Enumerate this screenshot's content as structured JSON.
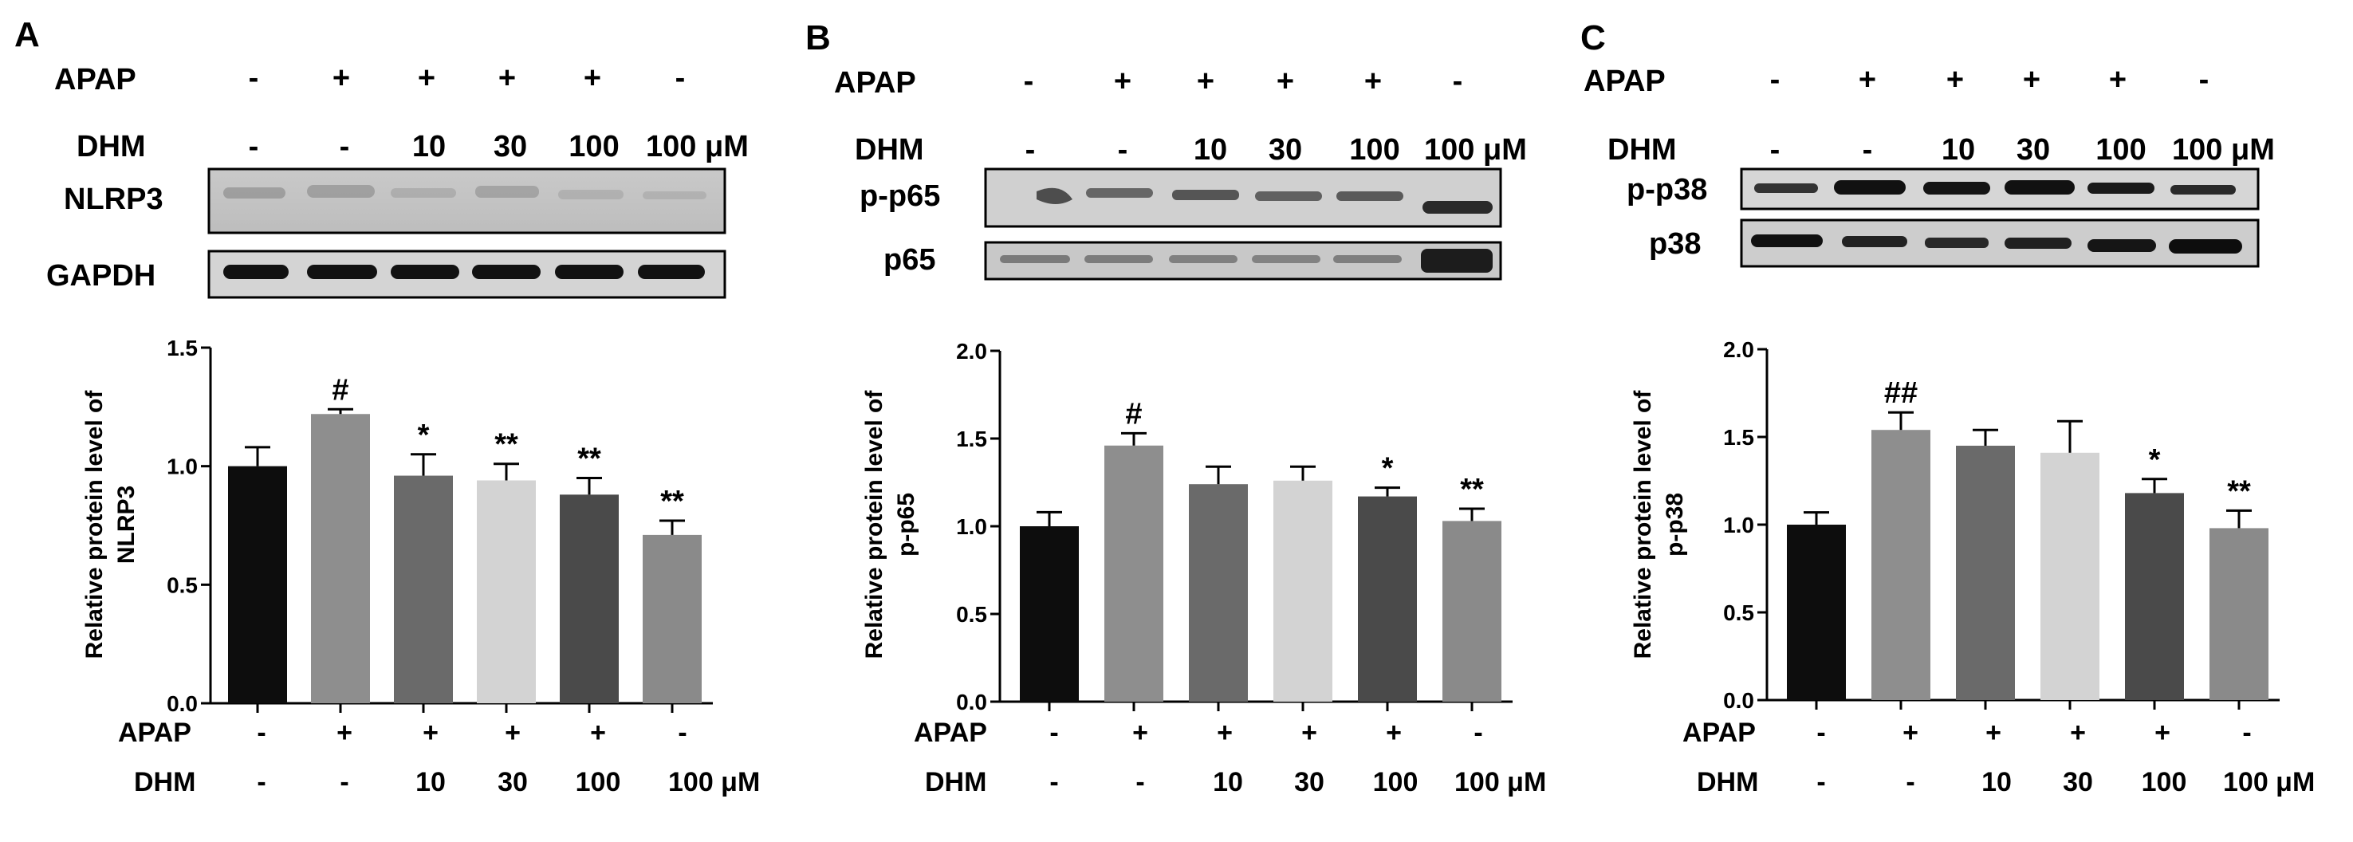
{
  "panels": [
    {
      "letter": "A",
      "blot_header": {
        "row1_label": "APAP",
        "row2_label": "DHM",
        "apap": [
          "-",
          "+",
          "+",
          "+",
          "+",
          "-"
        ],
        "dhm": [
          "-",
          "-",
          "10",
          "30",
          "100",
          "100 μM"
        ]
      },
      "blots": [
        "NLRP3",
        "GAPDH"
      ],
      "axis_header": {
        "row1_label": "APAP",
        "row2_label": "DHM",
        "apap": [
          "-",
          "+",
          "+",
          "+",
          "+",
          "-"
        ],
        "dhm": [
          "-",
          "-",
          "10",
          "30",
          "100",
          "100 μM"
        ]
      }
    },
    {
      "letter": "B",
      "blot_header": {
        "row1_label": "APAP",
        "row2_label": "DHM",
        "apap": [
          "-",
          "+",
          "+",
          "+",
          "+",
          "-"
        ],
        "dhm": [
          "-",
          "-",
          "10",
          "30",
          "100",
          "100 μM"
        ]
      },
      "blots": [
        "p-p65",
        "p65"
      ],
      "axis_header": {
        "row1_label": "APAP",
        "row2_label": "DHM",
        "apap": [
          "-",
          "+",
          "+",
          "+",
          "+",
          "-"
        ],
        "dhm": [
          "-",
          "-",
          "10",
          "30",
          "100",
          "100 μM"
        ]
      }
    },
    {
      "letter": "C",
      "blot_header": {
        "row1_label": "APAP",
        "row2_label": "DHM",
        "apap": [
          "-",
          "+",
          "+",
          "+",
          "+",
          "-"
        ],
        "dhm": [
          "-",
          "-",
          "10",
          "30",
          "100",
          "100 μM"
        ]
      },
      "blots": [
        "p-p38",
        "p38"
      ],
      "axis_header": {
        "row1_label": "APAP",
        "row2_label": "DHM",
        "apap": [
          "-",
          "+",
          "+",
          "+",
          "+",
          "-"
        ],
        "dhm": [
          "-",
          "-",
          "10",
          "30",
          "100",
          "100 μM"
        ]
      }
    }
  ],
  "bar_colors": [
    "#0d0d0d",
    "#8e8e8e",
    "#6a6a6a",
    "#d3d3d3",
    "#4a4a4a",
    "#8a8a8a"
  ],
  "chart_data": [
    {
      "type": "bar",
      "panel": "A",
      "ylabel_lines": [
        "Relative protein level of",
        "NLRP3"
      ],
      "ylim": [
        0,
        1.5
      ],
      "yticks": [
        "0.0",
        "0.5",
        "1.0",
        "1.5"
      ],
      "categories": [
        "1",
        "2",
        "3",
        "4",
        "5",
        "6"
      ],
      "values": [
        1.0,
        1.22,
        0.96,
        0.94,
        0.88,
        0.71
      ],
      "errors": [
        0.08,
        0.02,
        0.09,
        0.07,
        0.07,
        0.06
      ],
      "annotations": [
        "",
        "#",
        "*",
        "**",
        "**",
        "**"
      ]
    },
    {
      "type": "bar",
      "panel": "B",
      "ylabel_lines": [
        "Relative protein level of",
        "p-p65"
      ],
      "ylim": [
        0,
        2.0
      ],
      "yticks": [
        "0.0",
        "0.5",
        "1.0",
        "1.5",
        "2.0"
      ],
      "categories": [
        "1",
        "2",
        "3",
        "4",
        "5",
        "6"
      ],
      "values": [
        1.0,
        1.46,
        1.24,
        1.26,
        1.17,
        1.03
      ],
      "errors": [
        0.08,
        0.07,
        0.1,
        0.08,
        0.05,
        0.07
      ],
      "annotations": [
        "",
        "#",
        "",
        "",
        "*",
        "**"
      ]
    },
    {
      "type": "bar",
      "panel": "C",
      "ylabel_lines": [
        "Relative protein level of",
        "p-p38"
      ],
      "ylim": [
        0,
        2.0
      ],
      "yticks": [
        "0.0",
        "0.5",
        "1.0",
        "1.5",
        "2.0"
      ],
      "categories": [
        "1",
        "2",
        "3",
        "4",
        "5",
        "6"
      ],
      "values": [
        1.0,
        1.54,
        1.45,
        1.41,
        1.18,
        0.98
      ],
      "errors": [
        0.07,
        0.1,
        0.09,
        0.18,
        0.08,
        0.1
      ],
      "annotations": [
        "",
        "##",
        "",
        "",
        "*",
        "**"
      ]
    }
  ]
}
